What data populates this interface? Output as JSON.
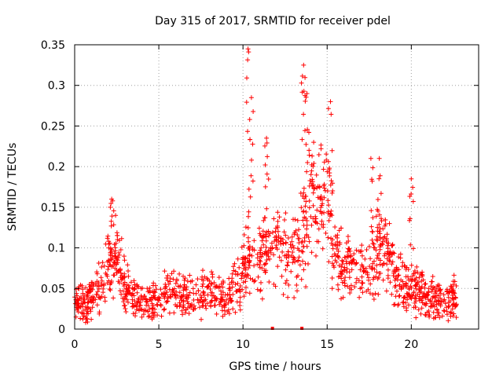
{
  "chart_data": {
    "type": "scatter",
    "title": "Day 315 of 2017, SRMTID for receiver pdel",
    "xlabel": "GPS time / hours",
    "ylabel": "SRMTID / TECUs",
    "xlim": [
      0,
      24
    ],
    "ylim": [
      0,
      0.35
    ],
    "grid": true,
    "marker_color": "#ff0000",
    "x_ticks": [
      0,
      5,
      10,
      15,
      20
    ],
    "x_tick_labels": [
      "0",
      "5",
      "10",
      "15",
      "20"
    ],
    "y_ticks": [
      0,
      0.05,
      0.1,
      0.15,
      0.2,
      0.25,
      0.3,
      0.35
    ],
    "y_tick_labels": [
      "0",
      "0.05",
      "0.1",
      "0.15",
      "0.2",
      "0.25",
      "0.3",
      "0.35"
    ],
    "data_extent_hours": [
      0,
      22.7
    ],
    "series": [
      {
        "name": "SRMTID",
        "marker": "+",
        "envelope_description": "approximate central trend (hour, SRMTID)",
        "trend": [
          [
            0,
            0.03
          ],
          [
            1,
            0.035
          ],
          [
            1.7,
            0.06
          ],
          [
            2,
            0.08
          ],
          [
            2.5,
            0.09
          ],
          [
            3,
            0.055
          ],
          [
            3.5,
            0.04
          ],
          [
            4,
            0.035
          ],
          [
            5,
            0.035
          ],
          [
            5.7,
            0.05
          ],
          [
            6,
            0.04
          ],
          [
            7,
            0.04
          ],
          [
            8,
            0.045
          ],
          [
            9,
            0.035
          ],
          [
            9.5,
            0.05
          ],
          [
            10,
            0.07
          ],
          [
            10.5,
            0.1
          ],
          [
            11,
            0.09
          ],
          [
            12,
            0.1
          ],
          [
            13,
            0.085
          ],
          [
            13.5,
            0.12
          ],
          [
            14,
            0.14
          ],
          [
            14.5,
            0.155
          ],
          [
            15,
            0.16
          ],
          [
            15.5,
            0.09
          ],
          [
            16,
            0.08
          ],
          [
            17,
            0.07
          ],
          [
            17.5,
            0.075
          ],
          [
            18,
            0.09
          ],
          [
            18.5,
            0.1
          ],
          [
            19,
            0.06
          ],
          [
            20,
            0.05
          ],
          [
            20.5,
            0.045
          ],
          [
            21,
            0.04
          ],
          [
            22,
            0.035
          ],
          [
            22.7,
            0.04
          ]
        ],
        "notable_peaks": [
          [
            2.2,
            0.16
          ],
          [
            10.3,
            0.345
          ],
          [
            10.5,
            0.285
          ],
          [
            11.4,
            0.235
          ],
          [
            13.6,
            0.325
          ],
          [
            13.8,
            0.29
          ],
          [
            14.2,
            0.23
          ],
          [
            15.2,
            0.28
          ],
          [
            17.6,
            0.21
          ],
          [
            18.1,
            0.21
          ],
          [
            20,
            0.185
          ]
        ],
        "zero_points": [
          [
            11.75,
            0
          ],
          [
            13.5,
            0
          ]
        ]
      }
    ]
  }
}
